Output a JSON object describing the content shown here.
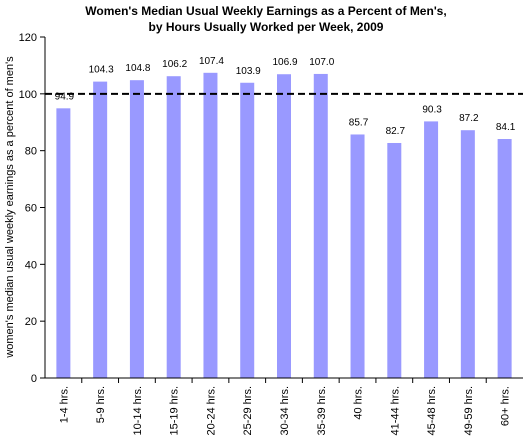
{
  "chart_data": {
    "type": "bar",
    "title_line1": "Women's Median Usual Weekly Earnings as a Percent of Men's,",
    "title_line2": "by Hours Usually Worked per Week, 2009",
    "ylabel": "women's median usual weekly earnings as a percent of men's",
    "xlabel": "",
    "categories": [
      "1-4 hrs.",
      "5-9 hrs.",
      "10-14 hrs.",
      "15-19 hrs.",
      "20-24 hrs.",
      "25-29 hrs.",
      "30-34 hrs.",
      "35-39 hrs.",
      "40 hrs.",
      "41-44 hrs.",
      "45-48 hrs.",
      "49-59 hrs.",
      "60+ hrs."
    ],
    "values": [
      94.9,
      104.3,
      104.8,
      106.2,
      107.4,
      103.9,
      106.9,
      107.0,
      85.7,
      82.7,
      90.3,
      87.2,
      84.1
    ],
    "data_labels": [
      "94.9",
      "104.3",
      "104.8",
      "106.2",
      "107.4",
      "103.9",
      "106.9",
      "107.0",
      "85.7",
      "82.7",
      "90.3",
      "87.2",
      "84.1"
    ],
    "yticks": [
      "0",
      "20",
      "40",
      "60",
      "80",
      "100",
      "120"
    ],
    "ylim": [
      0,
      120
    ],
    "reference_line": 100,
    "bar_color": "#9999ff",
    "grid": false
  }
}
